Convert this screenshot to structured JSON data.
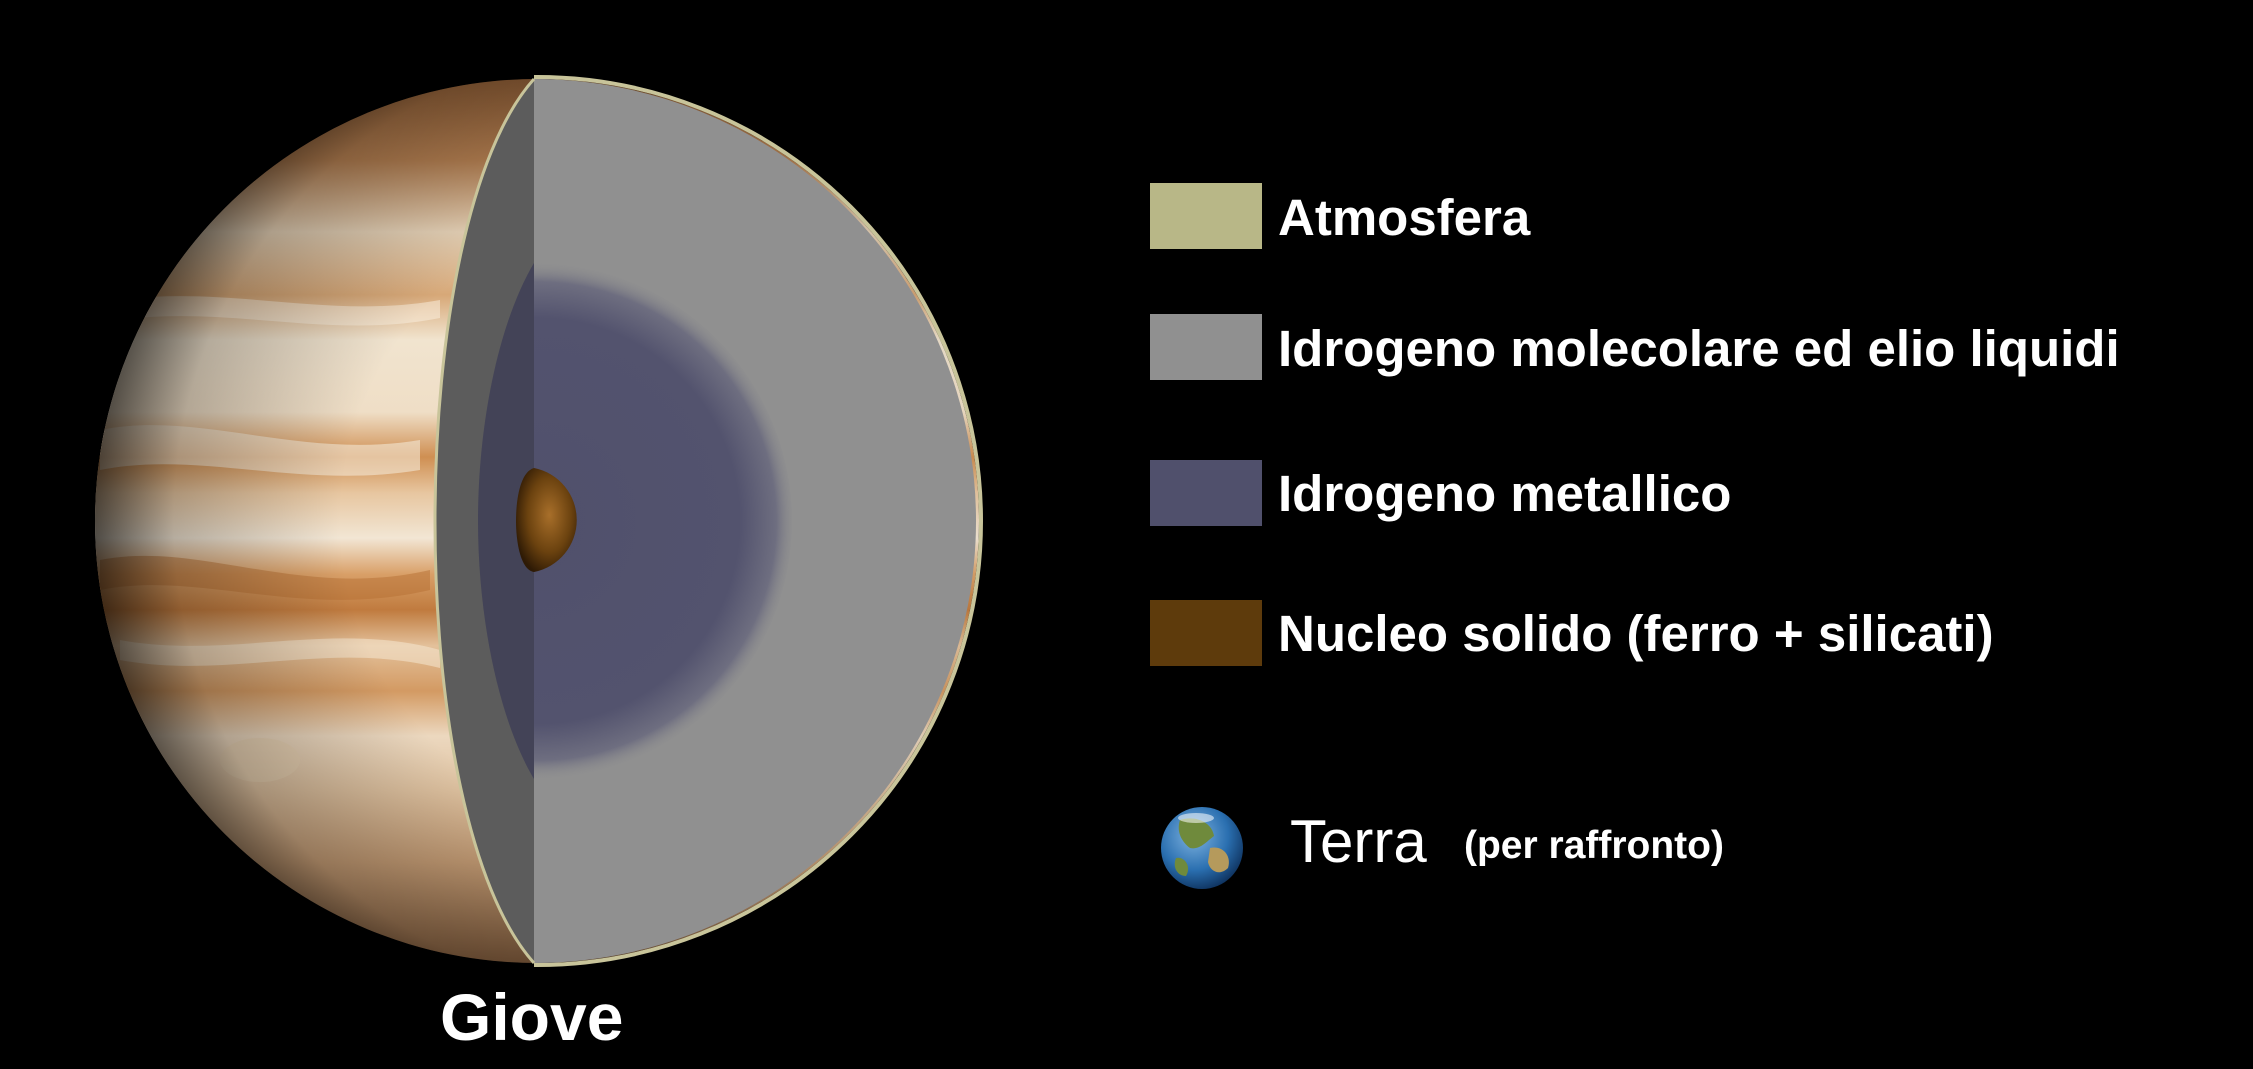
{
  "planet": {
    "name": "Giove"
  },
  "legend": [
    {
      "label": "Atmosfera",
      "color": "#b8b787"
    },
    {
      "label": "Idrogeno molecolare ed elio liquidi",
      "color": "#909090"
    },
    {
      "label": "Idrogeno metallico",
      "color": "#50506c"
    },
    {
      "label": "Nucleo solido (ferro + silicati)",
      "color": "#5e3b0c"
    }
  ],
  "earth": {
    "label": "Terra",
    "note": "(per raffronto)"
  },
  "colors": {
    "background": "#000000",
    "jupiter_band_light": "#ecdcc4",
    "jupiter_band_dark": "#c9874a",
    "atmosphere_outline": "#c8c49a",
    "earth_ocean": "#2a6fb0",
    "earth_land": "#6f8a3c"
  },
  "icons": [
    "earth-icon",
    "jupiter-cutaway-icon"
  ]
}
